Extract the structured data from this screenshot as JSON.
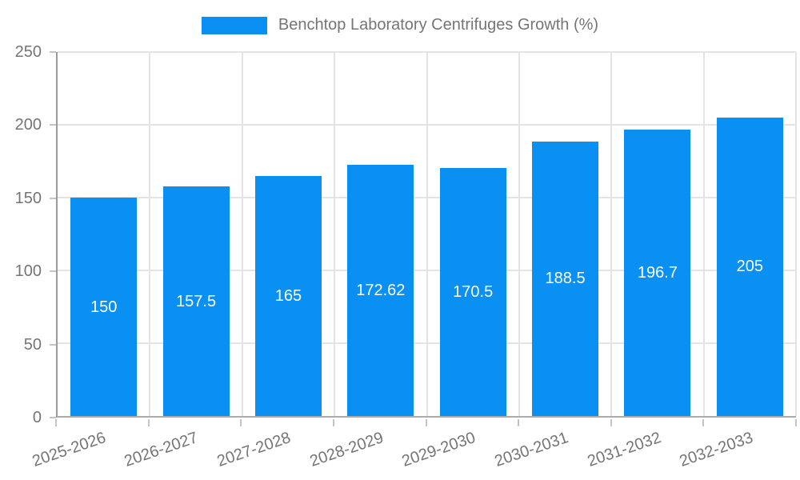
{
  "legend": {
    "swatch_color": "#0a8ff2"
  },
  "chart_data": {
    "type": "bar",
    "title": "Benchtop Laboratory Centrifuges Growth (%)",
    "xlabel": "",
    "ylabel": "",
    "categories": [
      "2025-2026",
      "2026-2027",
      "2027-2028",
      "2028-2029",
      "2029-2030",
      "2030-2031",
      "2031-2032",
      "2032-2033"
    ],
    "values": [
      150,
      157.5,
      165,
      172.62,
      170.5,
      188.5,
      196.7,
      205
    ],
    "value_labels": [
      "150",
      "157.5",
      "165",
      "172.62",
      "170.5",
      "188.5",
      "196.7",
      "205"
    ],
    "ylim": [
      0,
      250
    ],
    "yticks": [
      0,
      50,
      100,
      150,
      200,
      250
    ],
    "grid": true,
    "legend_position": "top-center",
    "bar_color": "#0a8ff2",
    "value_label_color": "#ffffff",
    "axis_text_color": "#757575"
  }
}
